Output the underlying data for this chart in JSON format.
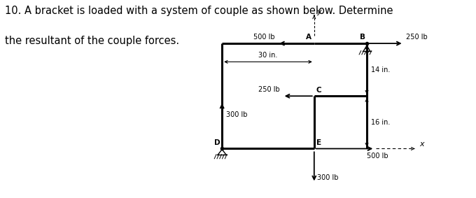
{
  "title_line1": "10. A bracket is loaded with a system of couple as shown below. Determine",
  "title_line2": "the resultant of the couple forces.",
  "bg_color": "#ffffff",
  "fig_width": 6.8,
  "fig_height": 2.83,
  "dpi": 100,
  "title_fontsize": 10.5,
  "label_fontsize": 7,
  "dim_fontsize": 7,
  "point_fontsize": 7.5,
  "bracket_lw": 2.2,
  "force_lw": 1.3,
  "dim_lw": 0.8,
  "axis_lw": 0.8,
  "points": {
    "A": [
      0.0,
      4.0
    ],
    "B": [
      2.0,
      4.0
    ],
    "C": [
      0.0,
      2.0
    ],
    "D": [
      -3.5,
      0.0
    ],
    "E": [
      0.0,
      0.0
    ]
  }
}
